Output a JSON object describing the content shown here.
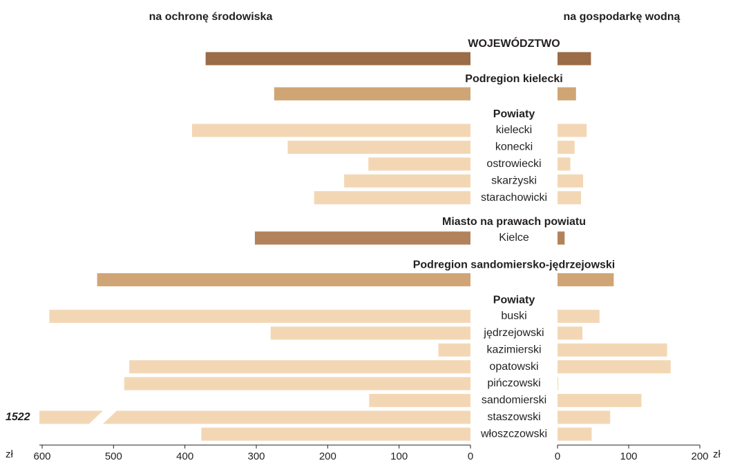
{
  "chart_data": {
    "type": "butterfly-bar",
    "unit": "zł",
    "categories": [
      "WOJEWÓDZTWO",
      "Podregion kielecki",
      "kielecki",
      "konecki",
      "ostrowiecki",
      "skarżyski",
      "starachowicki",
      "Kielce",
      "Podregion sandomiersko-jędrzejowski",
      "buski",
      "jędrzejowski",
      "kazimierski",
      "opatowski",
      "pińczowski",
      "sandomierski",
      "staszowski",
      "włoszczowski"
    ],
    "levels": [
      "region",
      "subregion",
      "county",
      "county",
      "county",
      "county",
      "county",
      "city",
      "subregion",
      "county",
      "county",
      "county",
      "county",
      "county",
      "county",
      "county",
      "county"
    ],
    "level_colors": {
      "region": "#9b6c48",
      "subregion": "#cfa575",
      "county": "#f3d7b5",
      "city": "#b2835a"
    },
    "section_headings": [
      {
        "text": "Powiaty",
        "before": 2
      },
      {
        "text": "Miasto na prawach powiatu",
        "before": 7
      },
      {
        "text": "Powiaty",
        "before": 9
      }
    ],
    "series": [
      {
        "name": "na ochronę środowiska",
        "values": [
          371,
          275,
          390,
          256,
          143,
          177,
          219,
          302,
          523,
          590,
          280,
          45,
          478,
          485,
          142,
          1522,
          377
        ],
        "value_labels": [
          null,
          null,
          null,
          null,
          null,
          null,
          null,
          null,
          null,
          null,
          null,
          null,
          null,
          null,
          null,
          "1522",
          null
        ]
      },
      {
        "name": "na gospodarkę wodną",
        "axis": "x2",
        "values": [
          47,
          26,
          41,
          24,
          18,
          36,
          33,
          10,
          79,
          59,
          35,
          154,
          159,
          1,
          118,
          74,
          48
        ]
      }
    ],
    "xlim": [
      0,
      600
    ],
    "xticks": [
      600,
      500,
      400,
      300,
      200,
      100,
      0
    ],
    "x2lim": [
      0,
      200
    ],
    "x2ticks": [
      0,
      100,
      200
    ]
  }
}
